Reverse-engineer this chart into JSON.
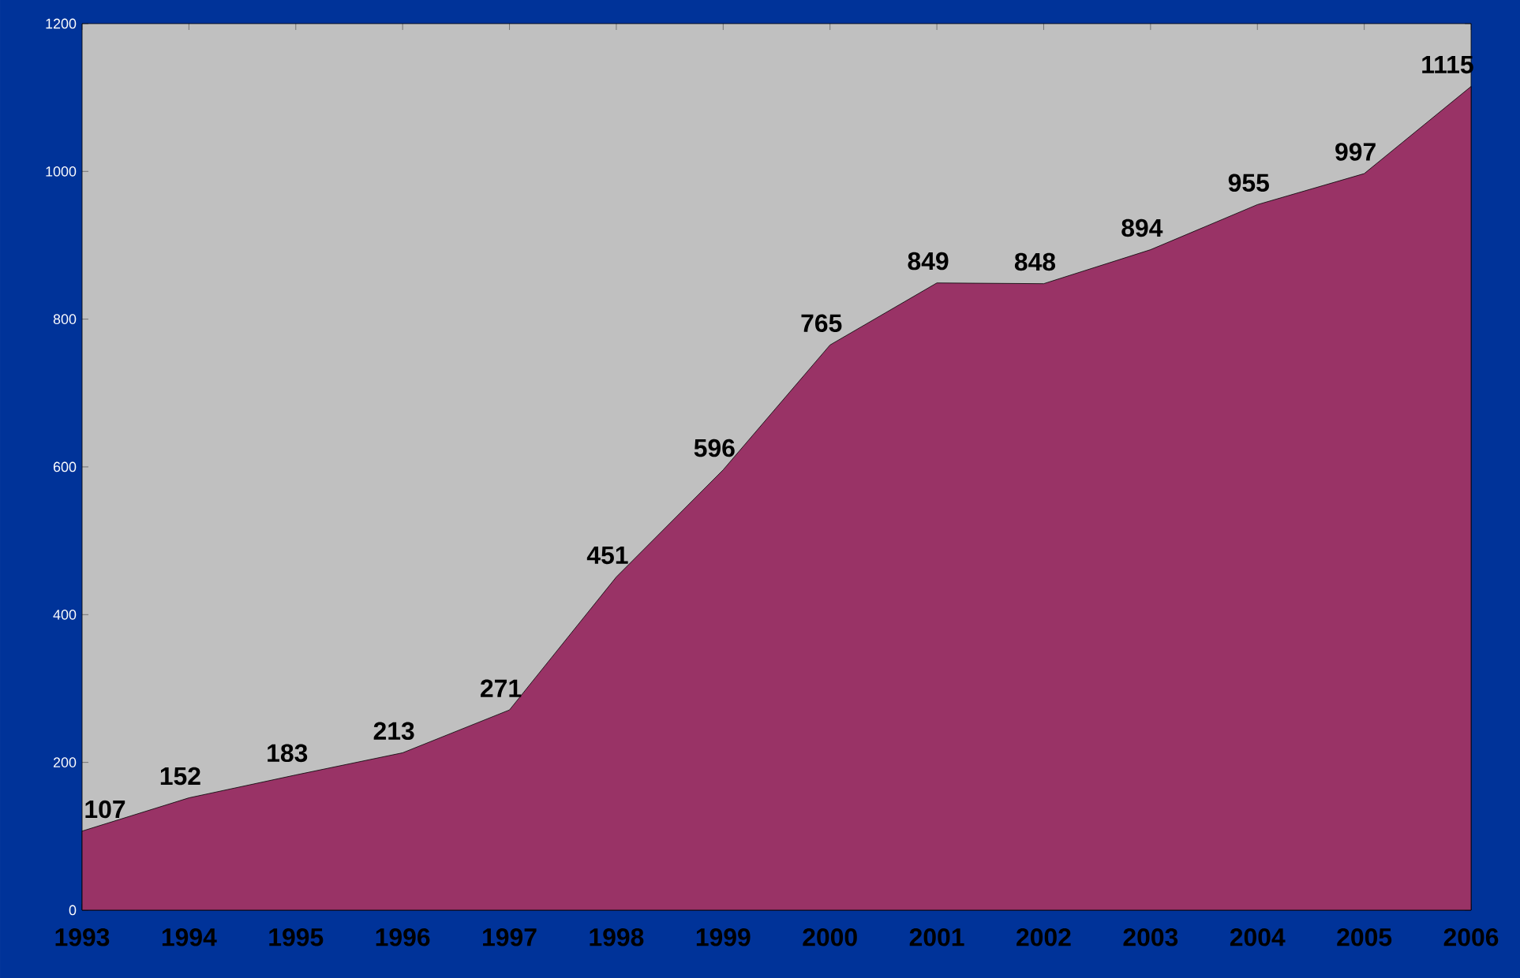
{
  "chart_data": {
    "type": "area",
    "categories": [
      "1993",
      "1994",
      "1995",
      "1996",
      "1997",
      "1998",
      "1999",
      "2000",
      "2001",
      "2002",
      "2003",
      "2004",
      "2005",
      "2006"
    ],
    "values": [
      107,
      152,
      183,
      213,
      271,
      451,
      596,
      765,
      849,
      848,
      894,
      955,
      997,
      1115
    ],
    "color": "#993366",
    "ylim": [
      0,
      1200
    ],
    "yticks": [
      0,
      200,
      400,
      600,
      800,
      1000,
      1200
    ],
    "data_labels": true,
    "grid": false,
    "marker": "none"
  }
}
